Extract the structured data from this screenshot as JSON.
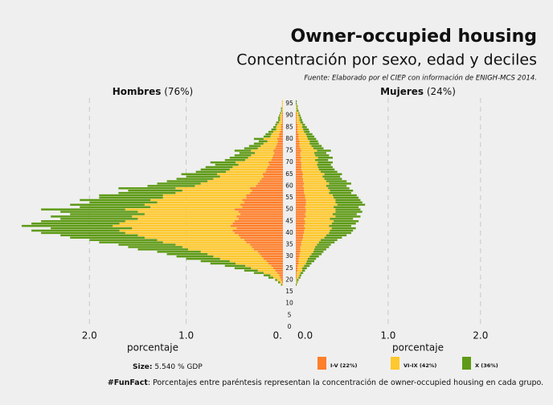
{
  "chart_data": {
    "type": "pyramid",
    "title": "Owner-occupied housing",
    "subtitle": "Concentración por sexo, edad y deciles",
    "source": "Fuente: Elaborado por el CIEP con información de ENIGH-MCS 2014.",
    "y": [
      18,
      19,
      20,
      21,
      22,
      23,
      24,
      25,
      26,
      27,
      28,
      29,
      30,
      31,
      32,
      33,
      34,
      35,
      36,
      37,
      38,
      39,
      40,
      41,
      42,
      43,
      44,
      45,
      46,
      47,
      48,
      49,
      50,
      51,
      52,
      53,
      54,
      55,
      56,
      57,
      58,
      59,
      60,
      61,
      62,
      63,
      64,
      65,
      66,
      67,
      68,
      69,
      70,
      71,
      72,
      73,
      74,
      75,
      76,
      77,
      78,
      79,
      80,
      81,
      82,
      83,
      84,
      85,
      86,
      87,
      88,
      89,
      90,
      91,
      92,
      93,
      94,
      95,
      96
    ],
    "ylim": [
      0,
      97
    ],
    "yticks": [
      0,
      5,
      10,
      15,
      20,
      25,
      30,
      35,
      40,
      45,
      50,
      55,
      60,
      65,
      70,
      75,
      80,
      85,
      90,
      95
    ],
    "grid": true,
    "series": [
      {
        "name": "I-V (22%)",
        "color": "#ff7f2a"
      },
      {
        "name": "VI-IX (42%)",
        "color": "#ffc82c"
      },
      {
        "name": "X (36%)",
        "color": "#5e9a16"
      }
    ],
    "panels": [
      {
        "label": "Hombres",
        "share": "(76%)",
        "side": "left",
        "xlim": [
          0,
          2.8
        ],
        "xlabel": "porcentaje",
        "xticks": [
          {
            "value": 2,
            "label": "2.0"
          },
          {
            "value": 1,
            "label": "1.0"
          },
          {
            "value": 0,
            "label": "0."
          }
        ],
        "values": [
          [
            0.0,
            0.01,
            0.02,
            0.03,
            0.04,
            0.06,
            0.08,
            0.1,
            0.12,
            0.15,
            0.17,
            0.2,
            0.22,
            0.24,
            0.26,
            0.3,
            0.32,
            0.34,
            0.38,
            0.4,
            0.44,
            0.46,
            0.5,
            0.52,
            0.48,
            0.54,
            0.52,
            0.5,
            0.46,
            0.48,
            0.44,
            0.46,
            0.5,
            0.42,
            0.44,
            0.4,
            0.42,
            0.38,
            0.38,
            0.34,
            0.32,
            0.34,
            0.28,
            0.26,
            0.24,
            0.22,
            0.2,
            0.21,
            0.18,
            0.17,
            0.16,
            0.14,
            0.15,
            0.12,
            0.11,
            0.1,
            0.09,
            0.1,
            0.08,
            0.07,
            0.06,
            0.05,
            0.06,
            0.04,
            0.04,
            0.03,
            0.02,
            0.02,
            0.02,
            0.01,
            0.01,
            0.01,
            0.01,
            0.01,
            0,
            0,
            0,
            0,
            0
          ],
          [
            0.01,
            0.02,
            0.04,
            0.07,
            0.09,
            0.14,
            0.18,
            0.23,
            0.27,
            0.34,
            0.38,
            0.45,
            0.5,
            0.54,
            0.59,
            0.68,
            0.72,
            0.77,
            0.86,
            0.9,
            0.99,
            1.04,
            1.13,
            1.17,
            1.08,
            1.22,
            1.17,
            1.13,
            1.04,
            1.08,
            0.99,
            1.04,
            1.13,
            0.95,
            0.99,
            0.9,
            0.95,
            0.86,
            0.86,
            0.77,
            0.72,
            0.77,
            0.63,
            0.59,
            0.54,
            0.5,
            0.45,
            0.47,
            0.41,
            0.38,
            0.36,
            0.32,
            0.34,
            0.27,
            0.25,
            0.23,
            0.2,
            0.23,
            0.18,
            0.16,
            0.14,
            0.11,
            0.14,
            0.09,
            0.08,
            0.07,
            0.05,
            0.05,
            0.04,
            0.03,
            0.02,
            0.02,
            0.02,
            0.01,
            0.01,
            0.01,
            0.01,
            0.01,
            0.01
          ],
          [
            0.01,
            0.02,
            0.02,
            0.05,
            0.07,
            0.1,
            0.14,
            0.17,
            0.21,
            0.26,
            0.3,
            0.35,
            0.38,
            0.42,
            0.45,
            0.52,
            0.56,
            0.59,
            0.66,
            0.7,
            0.77,
            0.8,
            0.87,
            0.91,
            0.84,
            0.94,
            0.91,
            0.87,
            0.8,
            0.84,
            0.77,
            0.8,
            0.87,
            0.73,
            0.77,
            0.7,
            0.73,
            0.66,
            0.66,
            0.59,
            0.56,
            0.59,
            0.49,
            0.45,
            0.42,
            0.38,
            0.35,
            0.37,
            0.31,
            0.3,
            0.28,
            0.24,
            0.26,
            0.21,
            0.19,
            0.17,
            0.16,
            0.17,
            0.14,
            0.12,
            0.1,
            0.09,
            0.1,
            0.07,
            0.06,
            0.05,
            0.05,
            0.03,
            0.02,
            0.03,
            0.02,
            0.02,
            0.01,
            0.01,
            0.01,
            0.01,
            0,
            0,
            0
          ]
        ]
      },
      {
        "label": "Mujeres",
        "share": "(24%)",
        "side": "right",
        "xlim": [
          0,
          2.75
        ],
        "xlabel": "porcentaje",
        "xticks": [
          {
            "value": 0,
            "label": "0.0"
          },
          {
            "value": 1,
            "label": "1.0"
          },
          {
            "value": 2,
            "label": "2.0"
          }
        ],
        "values": [
          [
            0,
            0,
            0,
            0.01,
            0.01,
            0.01,
            0.02,
            0.02,
            0.02,
            0.03,
            0.03,
            0.03,
            0.04,
            0.04,
            0.05,
            0.05,
            0.05,
            0.06,
            0.06,
            0.07,
            0.08,
            0.08,
            0.09,
            0.09,
            0.1,
            0.09,
            0.1,
            0.1,
            0.09,
            0.11,
            0.1,
            0.11,
            0.11,
            0.1,
            0.11,
            0.11,
            0.11,
            0.1,
            0.1,
            0.09,
            0.09,
            0.09,
            0.08,
            0.09,
            0.08,
            0.08,
            0.07,
            0.08,
            0.07,
            0.06,
            0.06,
            0.06,
            0.06,
            0.05,
            0.06,
            0.05,
            0.05,
            0.06,
            0.05,
            0.04,
            0.04,
            0.04,
            0.03,
            0.03,
            0.03,
            0.02,
            0.02,
            0.02,
            0.02,
            0.01,
            0.01,
            0.01,
            0.01,
            0.01,
            0,
            0,
            0,
            0,
            0
          ],
          [
            0,
            0.01,
            0.01,
            0.02,
            0.03,
            0.04,
            0.05,
            0.05,
            0.07,
            0.08,
            0.09,
            0.1,
            0.11,
            0.13,
            0.14,
            0.15,
            0.16,
            0.17,
            0.19,
            0.2,
            0.23,
            0.25,
            0.27,
            0.28,
            0.29,
            0.27,
            0.29,
            0.31,
            0.28,
            0.32,
            0.3,
            0.32,
            0.32,
            0.31,
            0.34,
            0.32,
            0.32,
            0.31,
            0.3,
            0.27,
            0.28,
            0.26,
            0.25,
            0.27,
            0.25,
            0.23,
            0.22,
            0.23,
            0.2,
            0.19,
            0.18,
            0.17,
            0.18,
            0.16,
            0.18,
            0.16,
            0.15,
            0.17,
            0.14,
            0.13,
            0.11,
            0.11,
            0.1,
            0.09,
            0.08,
            0.07,
            0.06,
            0.05,
            0.05,
            0.04,
            0.03,
            0.03,
            0.02,
            0.02,
            0.01,
            0.01,
            0.01,
            0,
            0
          ],
          [
            0.01,
            0.01,
            0.02,
            0.02,
            0.02,
            0.03,
            0.03,
            0.05,
            0.06,
            0.06,
            0.08,
            0.09,
            0.1,
            0.11,
            0.11,
            0.13,
            0.15,
            0.15,
            0.17,
            0.18,
            0.19,
            0.22,
            0.24,
            0.25,
            0.26,
            0.24,
            0.26,
            0.27,
            0.25,
            0.27,
            0.26,
            0.29,
            0.27,
            0.27,
            0.3,
            0.29,
            0.27,
            0.27,
            0.26,
            0.24,
            0.25,
            0.23,
            0.22,
            0.24,
            0.22,
            0.19,
            0.19,
            0.19,
            0.18,
            0.17,
            0.16,
            0.15,
            0.16,
            0.14,
            0.16,
            0.15,
            0.13,
            0.15,
            0.11,
            0.11,
            0.1,
            0.09,
            0.09,
            0.08,
            0.07,
            0.06,
            0.06,
            0.05,
            0.03,
            0.03,
            0.03,
            0.02,
            0.02,
            0.01,
            0.02,
            0.01,
            0.01,
            0.01,
            0.01
          ]
        ]
      }
    ],
    "size_label": "Size:",
    "size_value": "5.540 % GDP",
    "funfact_label": "#FunFact",
    "funfact": ": Porcentajes entre paréntesis representan la concentración de owner-occupied housing en cada grupo."
  }
}
